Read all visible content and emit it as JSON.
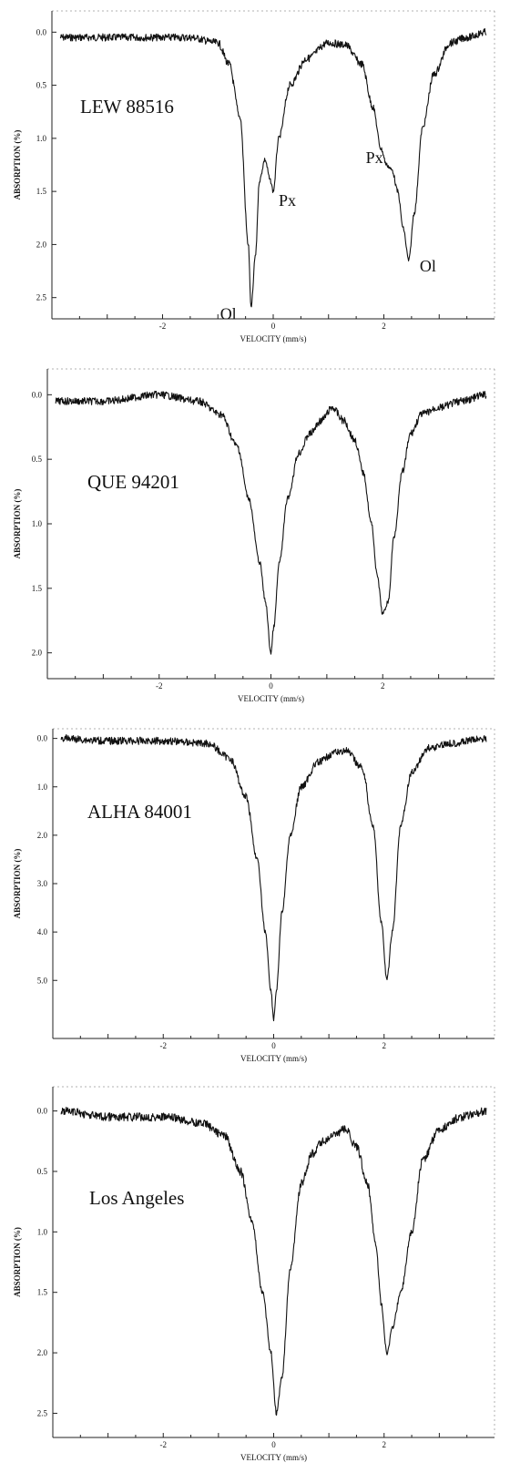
{
  "figure": {
    "panels": [
      {
        "sample": "LEW 88516",
        "ylabel": "ABSORPTION (%)",
        "xlabel": "VELOCITY (mm/s)"
      },
      {
        "sample": "QUE 94201",
        "ylabel": "ABSORPTION (%)",
        "xlabel": "VELOCITY (mm/s)"
      },
      {
        "sample": "ALHA 84001",
        "ylabel": "ABSORPTION (%)",
        "xlabel": "VELOCITY (mm/s)"
      },
      {
        "sample": "Los Angeles",
        "ylabel": "ABSORPTION (%)",
        "xlabel": "VELOCITY (mm/s)"
      }
    ]
  },
  "chart_data": [
    {
      "type": "line",
      "title": "LEW 88516",
      "xlabel": "VELOCITY (mm/s)",
      "ylabel": "ABSORPTION (%)",
      "xlim": [
        -4,
        4
      ],
      "ylim": [
        2.7,
        -0.2
      ],
      "y_inverted": true,
      "xticks": [
        "-2",
        "0",
        "2"
      ],
      "yticks": [
        "0.0",
        "0.5",
        "1.0",
        "1.5",
        "2.0",
        "2.5"
      ],
      "peaks": [
        {
          "label": "Ol",
          "x": -0.4,
          "y": 2.6
        },
        {
          "label": "Px",
          "x": 0.0,
          "y": 1.5
        },
        {
          "label": "Px",
          "x": 2.1,
          "y": 1.25
        },
        {
          "label": "Ol",
          "x": 2.45,
          "y": 2.15
        }
      ],
      "series": [
        {
          "x": [
            -3.85,
            -3.0,
            -2.0,
            -1.5,
            -1.0,
            -0.8,
            -0.6,
            -0.45,
            -0.4,
            -0.32,
            -0.25,
            -0.15,
            -0.05,
            0.0,
            0.1,
            0.3,
            0.6,
            1.0,
            1.3,
            1.6,
            1.8,
            1.95,
            2.05,
            2.15,
            2.25,
            2.35,
            2.45,
            2.55,
            2.7,
            2.9,
            3.2,
            3.5,
            3.85
          ],
          "y": [
            0.05,
            0.05,
            0.05,
            0.05,
            0.1,
            0.3,
            0.8,
            2.0,
            2.6,
            2.1,
            1.4,
            1.2,
            1.4,
            1.5,
            1.0,
            0.5,
            0.25,
            0.1,
            0.12,
            0.3,
            0.7,
            1.1,
            1.25,
            1.3,
            1.5,
            1.85,
            2.15,
            1.7,
            0.9,
            0.4,
            0.1,
            0.05,
            0.0
          ]
        }
      ]
    },
    {
      "type": "line",
      "title": "QUE 94201",
      "xlabel": "VELOCITY (mm/s)",
      "ylabel": "ABSORPTION (%)",
      "xlim": [
        -4,
        4
      ],
      "ylim": [
        2.2,
        -0.2
      ],
      "y_inverted": true,
      "xticks": [
        "-2",
        "0",
        "2"
      ],
      "yticks": [
        "0.0",
        "0.5",
        "1.0",
        "1.5",
        "2.0"
      ],
      "series": [
        {
          "x": [
            -3.85,
            -3.0,
            -2.0,
            -1.3,
            -0.9,
            -0.6,
            -0.4,
            -0.2,
            -0.1,
            0.0,
            0.05,
            0.15,
            0.3,
            0.5,
            0.7,
            0.9,
            1.1,
            1.3,
            1.5,
            1.65,
            1.8,
            1.9,
            2.0,
            2.1,
            2.2,
            2.35,
            2.5,
            2.7,
            3.0,
            3.4,
            3.85
          ],
          "y": [
            0.05,
            0.05,
            0.0,
            0.05,
            0.15,
            0.4,
            0.8,
            1.3,
            1.6,
            2.0,
            1.8,
            1.3,
            0.8,
            0.45,
            0.3,
            0.2,
            0.1,
            0.2,
            0.35,
            0.6,
            1.0,
            1.4,
            1.7,
            1.6,
            1.1,
            0.6,
            0.3,
            0.15,
            0.1,
            0.05,
            0.0
          ]
        }
      ]
    },
    {
      "type": "line",
      "title": "ALHA 84001",
      "xlabel": "VELOCITY (mm/s)",
      "ylabel": "ABSORPTION (%)",
      "xlim": [
        -4,
        4
      ],
      "ylim": [
        6.2,
        -0.2
      ],
      "y_inverted": true,
      "xticks": [
        "-2",
        "0",
        "2"
      ],
      "yticks": [
        "0.0",
        "1.0",
        "2.0",
        "3.0",
        "4.0",
        "5.0"
      ],
      "series": [
        {
          "x": [
            -3.85,
            -3.0,
            -2.0,
            -1.2,
            -0.8,
            -0.5,
            -0.3,
            -0.15,
            -0.05,
            0.0,
            0.05,
            0.15,
            0.3,
            0.5,
            0.8,
            1.1,
            1.3,
            1.6,
            1.8,
            1.95,
            2.05,
            2.15,
            2.3,
            2.5,
            2.8,
            3.2,
            3.85
          ],
          "y": [
            0.0,
            0.05,
            0.05,
            0.1,
            0.4,
            1.2,
            2.5,
            4.0,
            5.2,
            5.8,
            5.2,
            3.6,
            2.0,
            1.0,
            0.5,
            0.3,
            0.25,
            0.6,
            1.8,
            3.8,
            5.0,
            4.0,
            1.8,
            0.7,
            0.2,
            0.1,
            0.0
          ]
        }
      ]
    },
    {
      "type": "line",
      "title": "Los Angeles",
      "xlabel": "VELOCITY (mm/s)",
      "ylabel": "ABSORPTION (%)",
      "xlim": [
        -4,
        4
      ],
      "ylim": [
        2.7,
        -0.2
      ],
      "y_inverted": true,
      "xticks": [
        "-2",
        "0",
        "2"
      ],
      "yticks": [
        "0.0",
        "0.5",
        "1.0",
        "1.5",
        "2.0",
        "2.5"
      ],
      "series": [
        {
          "x": [
            -3.85,
            -3.0,
            -2.0,
            -1.3,
            -0.9,
            -0.6,
            -0.4,
            -0.2,
            -0.05,
            0.05,
            0.15,
            0.3,
            0.5,
            0.7,
            0.9,
            1.1,
            1.3,
            1.5,
            1.7,
            1.85,
            1.95,
            2.05,
            2.15,
            2.3,
            2.5,
            2.7,
            3.0,
            3.4,
            3.85
          ],
          "y": [
            0.0,
            0.05,
            0.05,
            0.1,
            0.2,
            0.5,
            0.9,
            1.5,
            2.0,
            2.5,
            2.2,
            1.3,
            0.6,
            0.35,
            0.25,
            0.2,
            0.15,
            0.3,
            0.6,
            1.1,
            1.6,
            2.0,
            1.8,
            1.5,
            1.0,
            0.4,
            0.15,
            0.05,
            0.0
          ]
        }
      ]
    }
  ]
}
